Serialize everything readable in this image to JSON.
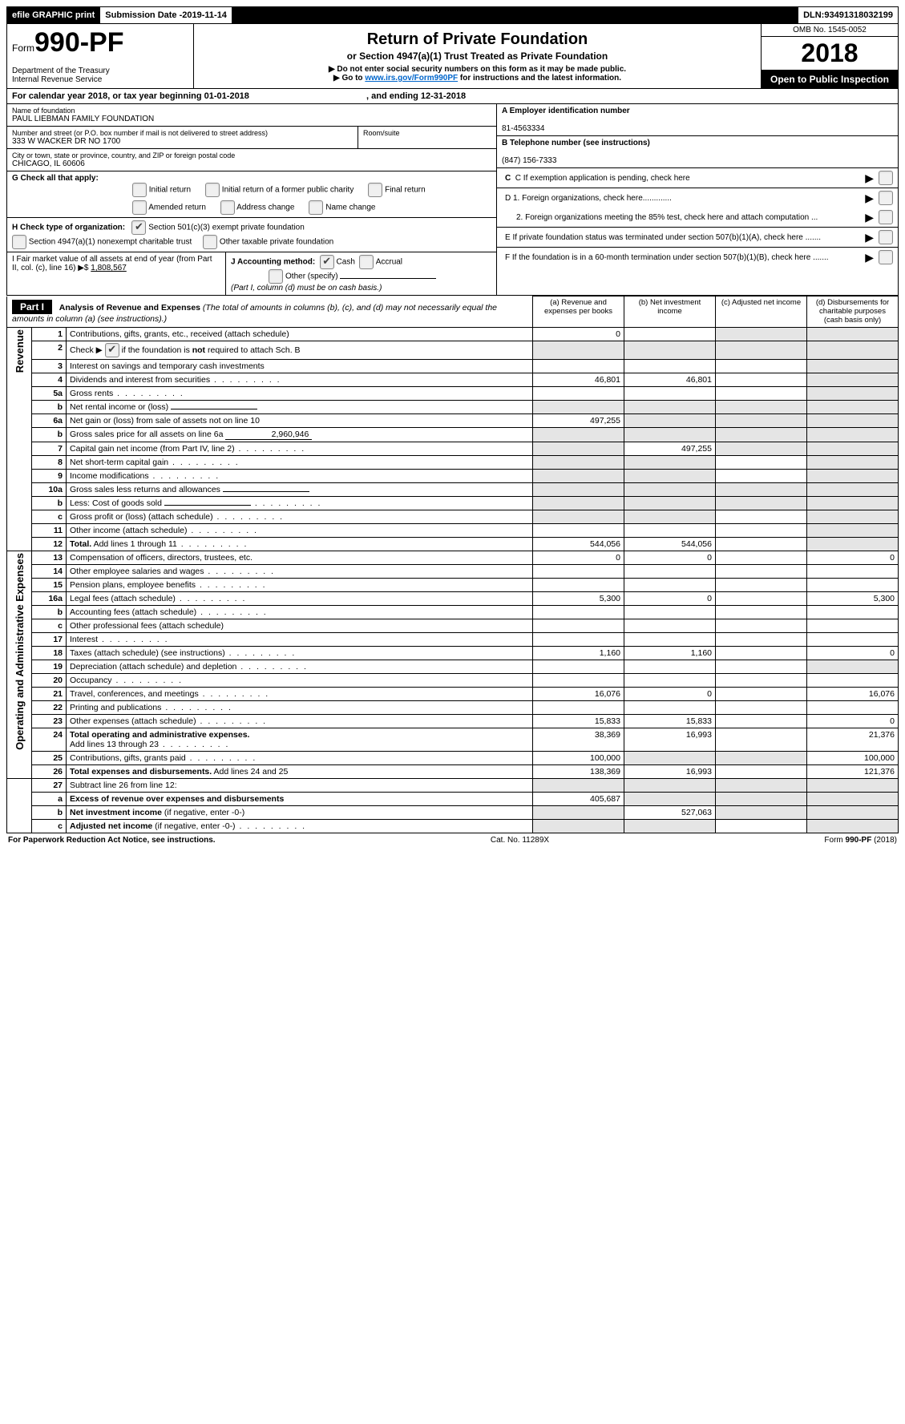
{
  "topbar": {
    "efile": "efile GRAPHIC print",
    "sub_date_label": "Submission Date - ",
    "sub_date": "2019-11-14",
    "dln_label": "DLN: ",
    "dln": "93491318032199"
  },
  "header": {
    "form_word": "Form",
    "form_num": "990-PF",
    "dept1": "Department of the Treasury",
    "dept2": "Internal Revenue Service",
    "title": "Return of Private Foundation",
    "subtitle": "or Section 4947(a)(1) Trust Treated as Private Foundation",
    "note1": "▶ Do not enter social security numbers on this form as it may be made public.",
    "note2_pre": "▶ Go to ",
    "note2_link": "www.irs.gov/Form990PF",
    "note2_post": " for instructions and the latest information.",
    "omb": "OMB No. 1545-0052",
    "year": "2018",
    "inspect": "Open to Public Inspection"
  },
  "cal": {
    "line": "For calendar year 2018, or tax year beginning 01-01-2018",
    "mid": ", and ending 12-31-2018"
  },
  "left": {
    "name_label": "Name of foundation",
    "name": "PAUL LIEBMAN FAMILY FOUNDATION",
    "addr_label": "Number and street (or P.O. box number if mail is not delivered to street address)",
    "addr": "333 W WACKER DR NO 1700",
    "room_label": "Room/suite",
    "city_label": "City or town, state or province, country, and ZIP or foreign postal code",
    "city": "CHICAGO, IL  60606",
    "g_label": "G Check all that apply:",
    "g_opts": [
      "Initial return",
      "Initial return of a former public charity",
      "Final return",
      "Amended return",
      "Address change",
      "Name change"
    ],
    "h_label": "H Check type of organization:",
    "h_opt1": "Section 501(c)(3) exempt private foundation",
    "h_opt2": "Section 4947(a)(1) nonexempt charitable trust",
    "h_opt3": "Other taxable private foundation",
    "i_label": "I Fair market value of all assets at end of year (from Part II, col. (c), line 16) ▶$",
    "i_value": "1,808,567",
    "j_label": "J Accounting method:",
    "j_cash": "Cash",
    "j_accrual": "Accrual",
    "j_other": "Other (specify)",
    "j_note": "(Part I, column (d) must be on cash basis.)"
  },
  "right": {
    "a_label": "A Employer identification number",
    "a_val": "81-4563334",
    "b_label": "B Telephone number (see instructions)",
    "b_val": "(847) 156-7333",
    "c_label": "C  If exemption application is pending, check here",
    "d1": "D 1. Foreign organizations, check here.............",
    "d2": "2. Foreign organizations meeting the 85% test, check here and attach computation ...",
    "e": "E  If private foundation status was terminated under section 507(b)(1)(A), check here .......",
    "f": "F  If the foundation is in a 60-month termination under section 507(b)(1)(B), check here ......."
  },
  "part1": {
    "label": "Part I",
    "title": "Analysis of Revenue and Expenses",
    "title_note": " (The total of amounts in columns (b), (c), and (d) may not necessarily equal the amounts in column (a) (see instructions).)",
    "cols": {
      "a": "(a)    Revenue and expenses per books",
      "b": "(b)    Net investment income",
      "c": "(c)    Adjusted net income",
      "d": "(d)    Disbursements for charitable purposes (cash basis only)"
    }
  },
  "side": {
    "rev": "Revenue",
    "exp": "Operating and Administrative Expenses"
  },
  "rows": [
    {
      "n": "1",
      "t": "Contributions, gifts, grants, etc., received (attach schedule)",
      "a": "0",
      "b": "",
      "c": "shade",
      "d": "shade"
    },
    {
      "n": "2",
      "t": "Check ▶      if the foundation is <b>not</b> required to attach Sch. B",
      "chk": true,
      "a": "shade",
      "b": "shade",
      "c": "shade",
      "d": "shade"
    },
    {
      "n": "3",
      "t": "Interest on savings and temporary cash investments",
      "a": "",
      "b": "",
      "c": "",
      "d": "shade"
    },
    {
      "n": "4",
      "t": "Dividends and interest from securities",
      "dots": true,
      "a": "46,801",
      "b": "46,801",
      "c": "",
      "d": "shade"
    },
    {
      "n": "5a",
      "t": "Gross rents",
      "dots": true,
      "a": "",
      "b": "",
      "c": "",
      "d": "shade"
    },
    {
      "n": "b",
      "t": "Net rental income or (loss)",
      "box": "",
      "a": "shade",
      "b": "shade",
      "c": "shade",
      "d": "shade"
    },
    {
      "n": "6a",
      "t": "Net gain or (loss) from sale of assets not on line 10",
      "a": "497,255",
      "b": "shade",
      "c": "shade",
      "d": "shade"
    },
    {
      "n": "b",
      "t": "Gross sales price for all assets on line 6a",
      "box": "2,960,946",
      "a": "shade",
      "b": "shade",
      "c": "shade",
      "d": "shade"
    },
    {
      "n": "7",
      "t": "Capital gain net income (from Part IV, line 2)",
      "dots": true,
      "a": "shade",
      "b": "497,255",
      "c": "shade",
      "d": "shade"
    },
    {
      "n": "8",
      "t": "Net short-term capital gain",
      "dots": true,
      "a": "shade",
      "b": "shade",
      "c": "",
      "d": "shade"
    },
    {
      "n": "9",
      "t": "Income modifications",
      "dots": true,
      "a": "shade",
      "b": "shade",
      "c": "",
      "d": "shade"
    },
    {
      "n": "10a",
      "t": "Gross sales less returns and allowances",
      "box": "",
      "a": "shade",
      "b": "shade",
      "c": "shade",
      "d": "shade"
    },
    {
      "n": "b",
      "t": "Less: Cost of goods sold",
      "dots": true,
      "box": "",
      "a": "shade",
      "b": "shade",
      "c": "shade",
      "d": "shade"
    },
    {
      "n": "c",
      "t": "Gross profit or (loss) (attach schedule)",
      "dots": true,
      "a": "shade",
      "b": "shade",
      "c": "",
      "d": "shade"
    },
    {
      "n": "11",
      "t": "Other income (attach schedule)",
      "dots": true,
      "a": "",
      "b": "",
      "c": "",
      "d": "shade"
    },
    {
      "n": "12",
      "t": "<b>Total.</b> Add lines 1 through 11",
      "dots": true,
      "a": "544,056",
      "b": "544,056",
      "c": "",
      "d": "shade"
    }
  ],
  "exp_rows": [
    {
      "n": "13",
      "t": "Compensation of officers, directors, trustees, etc.",
      "a": "0",
      "b": "0",
      "c": "",
      "d": "0"
    },
    {
      "n": "14",
      "t": "Other employee salaries and wages",
      "dots": true,
      "a": "",
      "b": "",
      "c": "",
      "d": ""
    },
    {
      "n": "15",
      "t": "Pension plans, employee benefits",
      "dots": true,
      "a": "",
      "b": "",
      "c": "",
      "d": ""
    },
    {
      "n": "16a",
      "t": "Legal fees (attach schedule)",
      "dots": true,
      "a": "5,300",
      "b": "0",
      "c": "",
      "d": "5,300"
    },
    {
      "n": "b",
      "t": "Accounting fees (attach schedule)",
      "dots": true,
      "a": "",
      "b": "",
      "c": "",
      "d": ""
    },
    {
      "n": "c",
      "t": "Other professional fees (attach schedule)",
      "a": "",
      "b": "",
      "c": "",
      "d": ""
    },
    {
      "n": "17",
      "t": "Interest",
      "dots": true,
      "a": "",
      "b": "",
      "c": "",
      "d": ""
    },
    {
      "n": "18",
      "t": "Taxes (attach schedule) (see instructions)",
      "dots": true,
      "a": "1,160",
      "b": "1,160",
      "c": "",
      "d": "0"
    },
    {
      "n": "19",
      "t": "Depreciation (attach schedule) and depletion",
      "dots": true,
      "a": "",
      "b": "",
      "c": "",
      "d": "shade"
    },
    {
      "n": "20",
      "t": "Occupancy",
      "dots": true,
      "a": "",
      "b": "",
      "c": "",
      "d": ""
    },
    {
      "n": "21",
      "t": "Travel, conferences, and meetings",
      "dots": true,
      "a": "16,076",
      "b": "0",
      "c": "",
      "d": "16,076"
    },
    {
      "n": "22",
      "t": "Printing and publications",
      "dots": true,
      "a": "",
      "b": "",
      "c": "",
      "d": ""
    },
    {
      "n": "23",
      "t": "Other expenses (attach schedule)",
      "dots": true,
      "a": "15,833",
      "b": "15,833",
      "c": "",
      "d": "0"
    },
    {
      "n": "24",
      "t": "<b>Total operating and administrative expenses.</b><br>Add lines 13 through 23",
      "dots": true,
      "a": "38,369",
      "b": "16,993",
      "c": "",
      "d": "21,376"
    },
    {
      "n": "25",
      "t": "Contributions, gifts, grants paid",
      "dots": true,
      "a": "100,000",
      "b": "shade",
      "c": "shade",
      "d": "100,000"
    },
    {
      "n": "26",
      "t": "<b>Total expenses and disbursements.</b> Add lines 24 and 25",
      "a": "138,369",
      "b": "16,993",
      "c": "",
      "d": "121,376"
    }
  ],
  "net_rows": [
    {
      "n": "27",
      "t": "Subtract line 26 from line 12:",
      "a": "shade",
      "b": "shade",
      "c": "shade",
      "d": "shade"
    },
    {
      "n": "a",
      "t": "<b>Excess of revenue over expenses and disbursements</b>",
      "a": "405,687",
      "b": "shade",
      "c": "shade",
      "d": "shade"
    },
    {
      "n": "b",
      "t": "<b>Net investment income</b> (if negative, enter -0-)",
      "a": "shade",
      "b": "527,063",
      "c": "shade",
      "d": "shade"
    },
    {
      "n": "c",
      "t": "<b>Adjusted net income</b> (if negative, enter -0-)",
      "dots": true,
      "a": "shade",
      "b": "shade",
      "c": "",
      "d": "shade"
    }
  ],
  "footer": {
    "left": "For Paperwork Reduction Act Notice, see instructions.",
    "mid": "Cat. No. 11289X",
    "right": "Form 990-PF (2018)"
  }
}
